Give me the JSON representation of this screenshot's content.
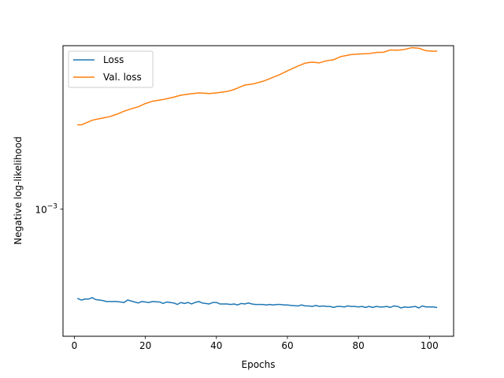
{
  "chart_data": {
    "type": "line",
    "xlabel": "Epochs",
    "ylabel": "Negative log-likelihood",
    "yscale": "log",
    "xlim": [
      -3.2,
      106.8
    ],
    "ylim": [
      0.000718,
      0.00153
    ],
    "x_ticks": [
      0,
      20,
      40,
      60,
      80,
      100
    ],
    "y_ticks": [
      {
        "value": 0.001,
        "label_base": "10",
        "label_exp": "−3"
      }
    ],
    "grid": false,
    "legend_position": "top-left",
    "series": [
      {
        "name": "Loss",
        "color": "#1f77b4",
        "points": [
          [
            1,
            0.000792
          ],
          [
            2,
            0.000789
          ],
          [
            3,
            0.000791
          ],
          [
            4,
            0.000791
          ],
          [
            5,
            0.000794
          ],
          [
            6,
            0.00079
          ],
          [
            7,
            0.000789
          ],
          [
            8,
            0.000788
          ],
          [
            9,
            0.000786
          ],
          [
            10,
            0.000786
          ],
          [
            12,
            0.000786
          ],
          [
            14,
            0.000784
          ],
          [
            15,
            0.000789
          ],
          [
            17,
            0.000785
          ],
          [
            18,
            0.000783
          ],
          [
            19,
            0.000786
          ],
          [
            20,
            0.000785
          ],
          [
            21,
            0.000784
          ],
          [
            22,
            0.000786
          ],
          [
            24,
            0.000785
          ],
          [
            25,
            0.000782
          ],
          [
            26,
            0.000785
          ],
          [
            28,
            0.000783
          ],
          [
            29,
            0.00078
          ],
          [
            30,
            0.000784
          ],
          [
            31,
            0.000782
          ],
          [
            32,
            0.000784
          ],
          [
            33,
            0.000781
          ],
          [
            34,
            0.000784
          ],
          [
            35,
            0.000786
          ],
          [
            36,
            0.000783
          ],
          [
            38,
            0.000781
          ],
          [
            39,
            0.000784
          ],
          [
            40,
            0.000784
          ],
          [
            41,
            0.000781
          ],
          [
            43,
            0.000781
          ],
          [
            44,
            0.00078
          ],
          [
            45,
            0.000781
          ],
          [
            46,
            0.000779
          ],
          [
            47,
            0.000782
          ],
          [
            48,
            0.000781
          ],
          [
            49,
            0.000783
          ],
          [
            50,
            0.000781
          ],
          [
            51,
            0.00078
          ],
          [
            53,
            0.00078
          ],
          [
            54,
            0.000779
          ],
          [
            55,
            0.00078
          ],
          [
            56,
            0.000779
          ],
          [
            57,
            0.00078
          ],
          [
            58,
            0.00078
          ],
          [
            59,
            0.000779
          ],
          [
            60,
            0.000779
          ],
          [
            61,
            0.000778
          ],
          [
            63,
            0.000777
          ],
          [
            64,
            0.000779
          ],
          [
            65,
            0.000777
          ],
          [
            66,
            0.000777
          ],
          [
            67,
            0.000776
          ],
          [
            68,
            0.000778
          ],
          [
            69,
            0.000776
          ],
          [
            70,
            0.000777
          ],
          [
            71,
            0.000776
          ],
          [
            72,
            0.000776
          ],
          [
            73,
            0.000774
          ],
          [
            74,
            0.000776
          ],
          [
            75,
            0.000776
          ],
          [
            76,
            0.000775
          ],
          [
            77,
            0.000777
          ],
          [
            78,
            0.000776
          ],
          [
            79,
            0.000776
          ],
          [
            80,
            0.000775
          ],
          [
            81,
            0.000776
          ],
          [
            82,
            0.000774
          ],
          [
            83,
            0.000776
          ],
          [
            84,
            0.000774
          ],
          [
            85,
            0.000776
          ],
          [
            86,
            0.000775
          ],
          [
            87,
            0.000775
          ],
          [
            88,
            0.000776
          ],
          [
            89,
            0.000774
          ],
          [
            90,
            0.000777
          ],
          [
            91,
            0.000776
          ],
          [
            92,
            0.000773
          ],
          [
            93,
            0.000775
          ],
          [
            94,
            0.000774
          ],
          [
            95,
            0.000775
          ],
          [
            96,
            0.000776
          ],
          [
            97,
            0.000773
          ],
          [
            98,
            0.000777
          ],
          [
            99,
            0.000775
          ],
          [
            100,
            0.000775
          ],
          [
            101,
            0.000775
          ],
          [
            102,
            0.000774
          ]
        ]
      },
      {
        "name": "Val. loss",
        "color": "#ff7f0e",
        "points": [
          [
            1,
            0.001245
          ],
          [
            2,
            0.001245
          ],
          [
            3,
            0.00125
          ],
          [
            4,
            0.001255
          ],
          [
            5,
            0.00126
          ],
          [
            7,
            0.001265
          ],
          [
            10,
            0.001272
          ],
          [
            12,
            0.00128
          ],
          [
            14,
            0.00129
          ],
          [
            16,
            0.001298
          ],
          [
            18,
            0.001305
          ],
          [
            20,
            0.001316
          ],
          [
            22,
            0.001324
          ],
          [
            25,
            0.00133
          ],
          [
            28,
            0.001338
          ],
          [
            30,
            0.001345
          ],
          [
            33,
            0.00135
          ],
          [
            35,
            0.001353
          ],
          [
            38,
            0.001351
          ],
          [
            40,
            0.001353
          ],
          [
            43,
            0.001358
          ],
          [
            45,
            0.001365
          ],
          [
            48,
            0.001381
          ],
          [
            50,
            0.001384
          ],
          [
            53,
            0.001394
          ],
          [
            55,
            0.001404
          ],
          [
            58,
            0.00142
          ],
          [
            60,
            0.001433
          ],
          [
            63,
            0.001451
          ],
          [
            65,
            0.001462
          ],
          [
            67,
            0.001466
          ],
          [
            69,
            0.001463
          ],
          [
            71,
            0.001471
          ],
          [
            73,
            0.001475
          ],
          [
            75,
            0.001487
          ],
          [
            78,
            0.001495
          ],
          [
            80,
            0.001497
          ],
          [
            83,
            0.001499
          ],
          [
            85,
            0.001503
          ],
          [
            87,
            0.001504
          ],
          [
            89,
            0.001513
          ],
          [
            91,
            0.001512
          ],
          [
            93,
            0.001515
          ],
          [
            95,
            0.001522
          ],
          [
            97,
            0.00152
          ],
          [
            99,
            0.00151
          ],
          [
            101,
            0.001508
          ],
          [
            102,
            0.001508
          ]
        ]
      }
    ]
  }
}
